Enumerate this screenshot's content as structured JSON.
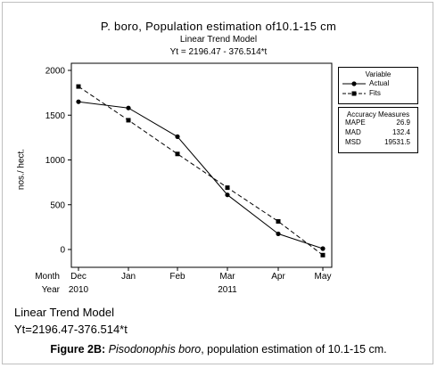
{
  "chart_data": {
    "type": "line",
    "title": "P. boro, Population estimation of10.1-15 cm",
    "subtitle": "Linear Trend Model",
    "equation": "Yt = 2196.47 - 376.514*t",
    "ylabel": "nos./ hect.",
    "ylim": [
      -100,
      2000
    ],
    "yticks": [
      "2000",
      "1500",
      "1000",
      "500",
      "0"
    ],
    "ytick_values": [
      2000,
      1500,
      1000,
      500,
      0
    ],
    "row_labels": {
      "month": "Month",
      "year": "Year"
    },
    "categories": [
      "Dec",
      "Jan",
      "Feb",
      "Mar",
      "Apr",
      "May"
    ],
    "years": [
      {
        "label": "2010",
        "index": 0
      },
      {
        "label": "2011",
        "index": 3
      }
    ],
    "legend_title": "Variable",
    "series": [
      {
        "name": "Actual",
        "style": "solid",
        "marker": "circle",
        "values": [
          1650,
          1580,
          1260,
          610,
          175,
          10
        ]
      },
      {
        "name": "Fits",
        "style": "dashed",
        "marker": "square",
        "values": [
          1819.96,
          1443.44,
          1066.93,
          690.41,
          313.9,
          -62.61
        ]
      }
    ],
    "accuracy": {
      "title": "Accuracy Measures",
      "rows": [
        {
          "label": "MAPE",
          "value": "26.9"
        },
        {
          "label": "MAD",
          "value": "132.4"
        },
        {
          "label": "MSD",
          "value": "19531.5"
        }
      ]
    }
  },
  "below": {
    "line1": "Linear Trend Model",
    "line2": "Yt=2196.47-376.514*t"
  },
  "caption": {
    "prefix": "Figure 2B:",
    "species": "Pisodonophis boro",
    "rest": ", population estimation of 10.1-15 cm."
  }
}
